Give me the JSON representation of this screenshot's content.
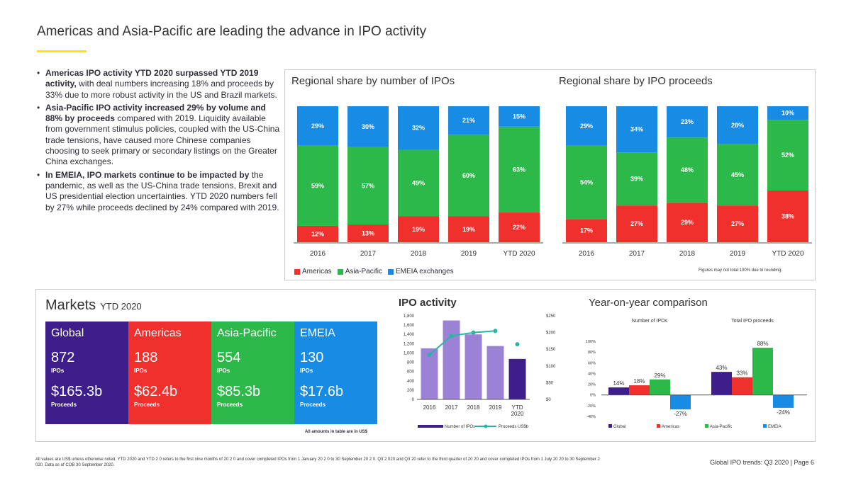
{
  "page": {
    "title": "Americas and Asia-Pacific are leading the advance in IPO activity",
    "footnote": "All values are US$ unless otherwise noted. YTD 2020 and YTD 2 0 refers to the first nine months of 20 2 0 and cover completed IPOs from 1 January 20 2 0 to 30 September 20 2 0. Q3 2 020 and Q3 20 refer to the third quarter of 20 20 and cover completed IPOs from 1 July 20 20 to 30 September 2 020. Data as of COB 30 September 2020.",
    "footer": "Global IPO trends: Q3 2020 | Page 6"
  },
  "bullets": [
    {
      "bold": "Americas IPO activity YTD 2020 surpassed YTD 2019 activity,",
      "rest": " with deal numbers increasing 18% and proceeds by 33% due to more robust activity in the US and Brazil markets."
    },
    {
      "bold": "Asia-Pacific IPO activity increased 29% by volume and 88% by proceeds",
      "rest": " compared with 2019. Liquidity available from government stimulus policies, coupled with the US-China trade tensions, have caused more Chinese companies choosing to seek primary or secondary listings on the Greater China exchanges."
    },
    {
      "bold": "In EMEIA, IPO markets continue to be impacted by",
      "rest": " the pandemic, as well as the US-China trade tensions, Brexit and US presidential election uncertainties. YTD 2020 numbers fell by 27% while proceeds declined by 24% compared with 2019."
    }
  ],
  "colors": {
    "americas": "#f0302c",
    "asia": "#2db94a",
    "emeia": "#188ce5",
    "global": "#3d1e8a",
    "ipo_bars": "#9c82d4",
    "ytd_bar": "#3d1e8a",
    "proceeds_line": "#2bb3a9"
  },
  "legend_top": {
    "americas": "Americas",
    "asia": "Asia-Pacific",
    "emeia": "EMEIA exchanges"
  },
  "rounding_note": "Figures may not total 100% due to rounding.",
  "markets": {
    "title": "Markets",
    "ytd": "YTD 2020",
    "amount_note": "All amounts in table are in US$",
    "items": [
      {
        "region": "Global",
        "ipos": "872",
        "ipos_label": "IPOs",
        "proceeds": "$165.3b",
        "proceeds_label": "Proceeds",
        "color": "#3d1e8a"
      },
      {
        "region": "Americas",
        "ipos": "188",
        "ipos_label": "IPOs",
        "proceeds": "$62.4b",
        "proceeds_label": "Proceeds",
        "color": "#f0302c"
      },
      {
        "region": "Asia-Pacific",
        "ipos": "554",
        "ipos_label": "IPOs",
        "proceeds": "$85.3b",
        "proceeds_label": "Proceeds",
        "color": "#2db94a"
      },
      {
        "region": "EMEIA",
        "ipos": "130",
        "ipos_label": "IPOs",
        "proceeds": "$17.6b",
        "proceeds_label": "Proceeds",
        "color": "#188ce5"
      }
    ]
  },
  "chart_data": [
    {
      "type": "bar",
      "stacked": true,
      "title": "Regional share by number of IPOs",
      "categories": [
        "2016",
        "2017",
        "2018",
        "2019",
        "YTD 2020"
      ],
      "series": [
        {
          "name": "Americas",
          "values": [
            12,
            13,
            19,
            19,
            22
          ],
          "labels": [
            "12%",
            "13%",
            "19%",
            "19%",
            "22%"
          ]
        },
        {
          "name": "Asia-Pacific",
          "values": [
            59,
            57,
            49,
            60,
            63
          ],
          "labels": [
            "59%",
            "57%",
            "49%",
            "60%",
            "63%"
          ]
        },
        {
          "name": "EMEIA exchanges",
          "values": [
            29,
            30,
            32,
            21,
            15
          ],
          "labels": [
            "29%",
            "30%",
            "32%",
            "21%",
            "15%"
          ]
        }
      ],
      "ylim": [
        0,
        100
      ]
    },
    {
      "type": "bar",
      "stacked": true,
      "title": "Regional share by IPO proceeds",
      "categories": [
        "2016",
        "2017",
        "2018",
        "2019",
        "YTD 2020"
      ],
      "series": [
        {
          "name": "Americas",
          "values": [
            17,
            27,
            29,
            27,
            38
          ],
          "labels": [
            "17%",
            "27%",
            "29%",
            "27%",
            "38%"
          ]
        },
        {
          "name": "Asia-Pacific",
          "values": [
            54,
            39,
            48,
            45,
            52
          ],
          "labels": [
            "54%",
            "39%",
            "48%",
            "45%",
            "52%"
          ]
        },
        {
          "name": "EMEIA exchanges",
          "values": [
            29,
            34,
            23,
            28,
            10
          ],
          "labels": [
            "29%",
            "34%",
            "23%",
            "28%",
            "10%"
          ]
        }
      ],
      "ylim": [
        0,
        100
      ]
    },
    {
      "type": "bar",
      "title": "IPO activity",
      "categories": [
        "2016",
        "2017",
        "2018",
        "2019",
        "YTD 2020"
      ],
      "series": [
        {
          "name": "Number of IPOs",
          "values": [
            1100,
            1700,
            1400,
            1150,
            872
          ]
        },
        {
          "name": "Proceeds US$b",
          "values": [
            133,
            190,
            200,
            205,
            165
          ]
        }
      ],
      "ylim": [
        0,
        1800
      ],
      "y_ticks": [
        "0",
        "200",
        "400",
        "600",
        "800",
        "1,000",
        "1,200",
        "1,400",
        "1,600",
        "1,800"
      ],
      "y2lim": [
        0,
        250
      ],
      "y2_ticks": [
        "$0",
        "$50",
        "$100",
        "$150",
        "$200",
        "$250"
      ]
    },
    {
      "type": "bar",
      "title": "Year-on-year comparison",
      "groups": [
        "Number of IPOs",
        "Total IPO proceeds"
      ],
      "series": [
        {
          "name": "Global",
          "values": [
            14,
            43
          ],
          "labels": [
            "14%",
            "43%"
          ]
        },
        {
          "name": "Americas",
          "values": [
            18,
            33
          ],
          "labels": [
            "18%",
            "33%"
          ]
        },
        {
          "name": "Asia-Pacific",
          "values": [
            29,
            88
          ],
          "labels": [
            "29%",
            "88%"
          ]
        },
        {
          "name": "EMEIA",
          "values": [
            -27,
            -24
          ],
          "labels": [
            "-27%",
            "-24%"
          ]
        }
      ],
      "ylim": [
        -40,
        100
      ],
      "y_ticks": [
        "100%",
        "80%",
        "60%",
        "40%",
        "20%",
        "0%",
        "-20%",
        "-40%"
      ]
    }
  ]
}
